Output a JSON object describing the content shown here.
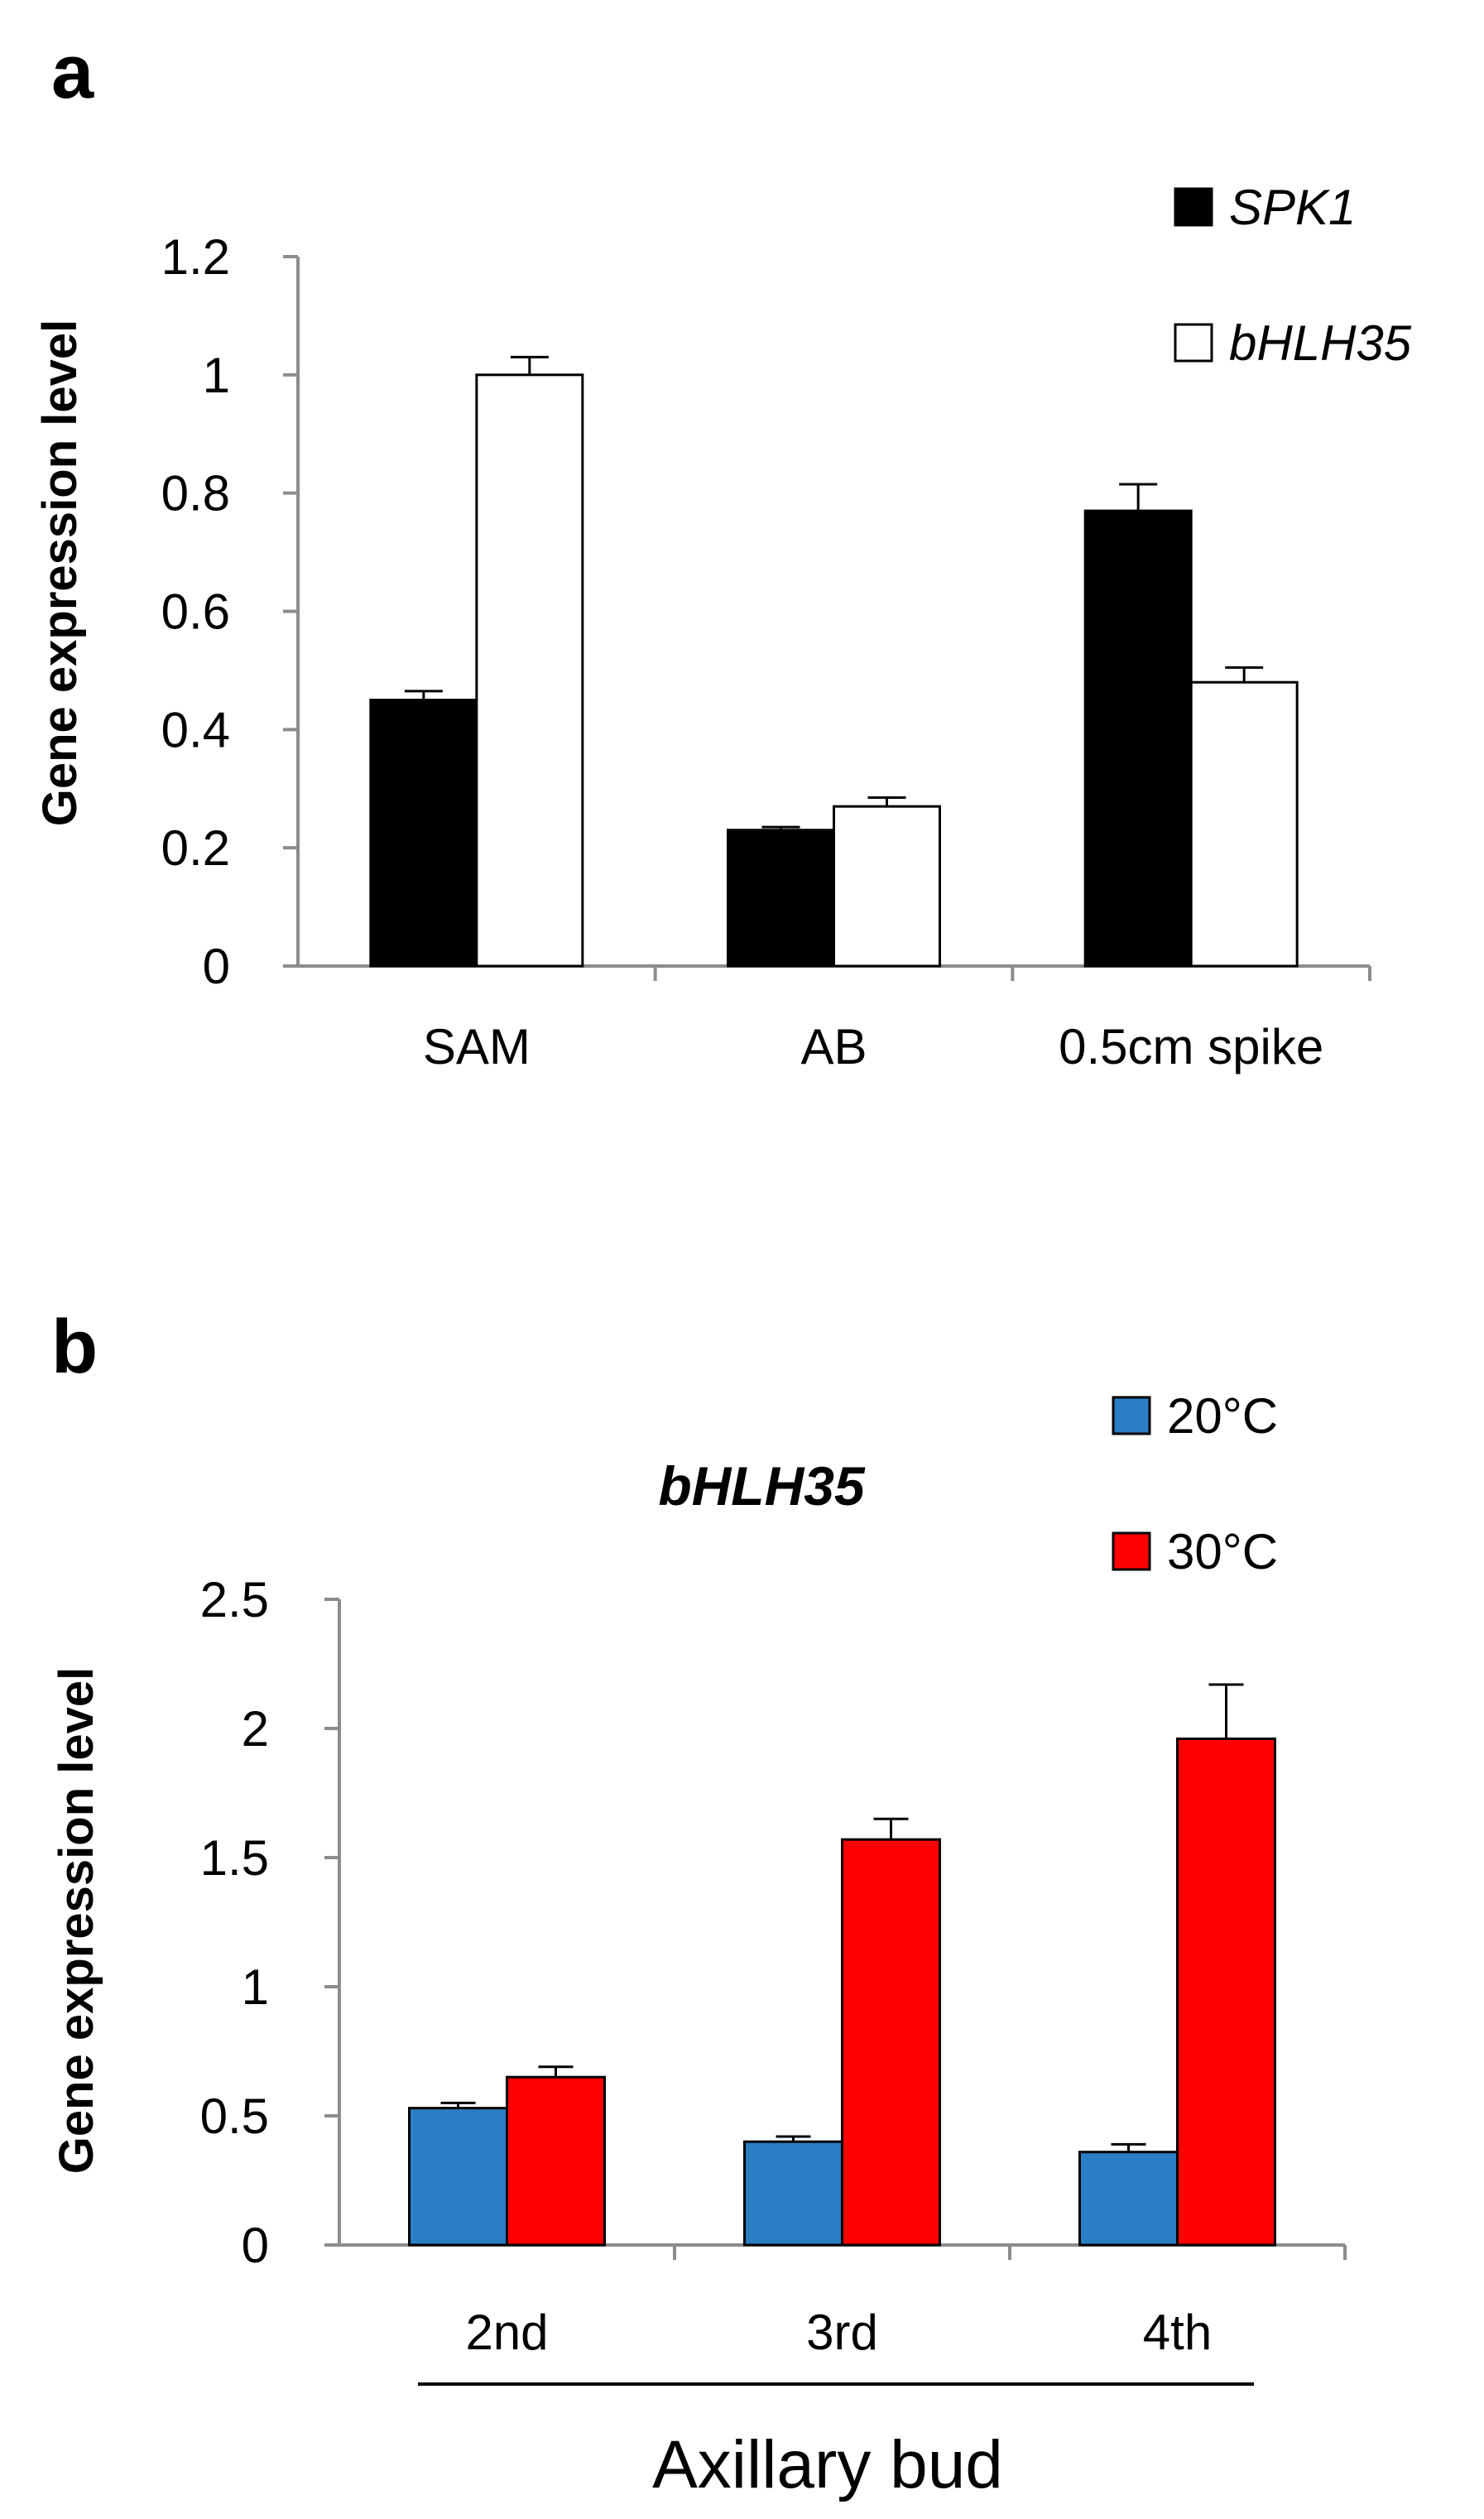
{
  "panels": {
    "a": {
      "label": "a"
    },
    "b": {
      "label": "b"
    }
  },
  "chart_data": [
    {
      "type": "bar",
      "title": "",
      "xlabel": "",
      "ylabel": "Gene expression level",
      "ylim": [
        0,
        1.2
      ],
      "yticks": [
        "0",
        "0.2",
        "0.4",
        "0.6",
        "0.8",
        "1",
        "1.2"
      ],
      "grid": false,
      "legend_position": "top-right",
      "categories": [
        "SAM",
        "AB",
        "0.5cm spike"
      ],
      "series": [
        {
          "name": "SPK1",
          "color": "#000000",
          "values": [
            0.45,
            0.23,
            0.77
          ],
          "errors": [
            0.015,
            0.005,
            0.045
          ]
        },
        {
          "name": "bHLH35",
          "color": "#ffffff",
          "values": [
            1.0,
            0.27,
            0.48
          ],
          "errors": [
            0.03,
            0.015,
            0.025
          ]
        }
      ]
    },
    {
      "type": "bar",
      "title": "bHLH35",
      "xlabel": "Axillary bud",
      "ylabel": "Gene expression level",
      "ylim": [
        0,
        2.5
      ],
      "yticks": [
        "0",
        "0.5",
        "1",
        "1.5",
        "2",
        "2.5"
      ],
      "grid": false,
      "legend_position": "top-right",
      "categories": [
        "2nd",
        "3rd",
        "4th"
      ],
      "series": [
        {
          "name": "20°C",
          "color": "#2a7ec4",
          "values": [
            0.53,
            0.4,
            0.36
          ],
          "errors": [
            0.02,
            0.02,
            0.03
          ]
        },
        {
          "name": "30°C",
          "color": "#ff0000",
          "values": [
            0.65,
            1.57,
            1.96
          ],
          "errors": [
            0.04,
            0.08,
            0.21
          ]
        }
      ]
    }
  ]
}
